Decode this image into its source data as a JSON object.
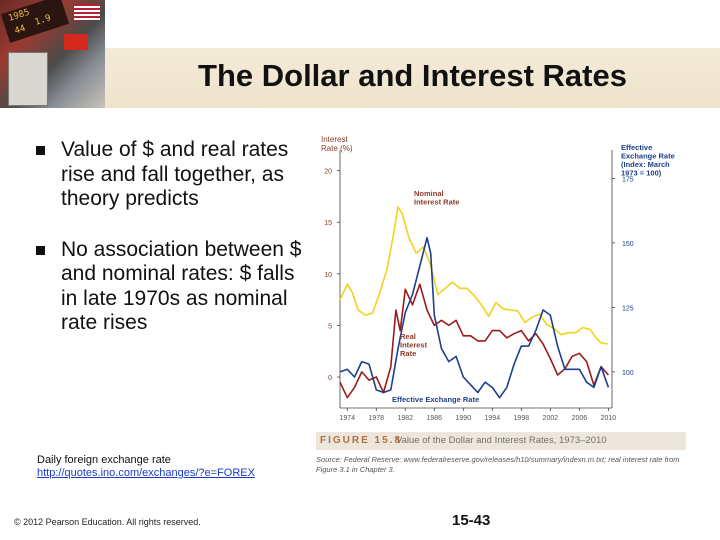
{
  "title": "The Dollar and Interest Rates",
  "bullets": [
    "Value of $ and real rates rise and fall together, as theory predicts",
    "No association between $ and nominal rates: $ falls in late 1970s as nominal rate rises"
  ],
  "note": {
    "text": "Daily foreign exchange rate",
    "link": "http://quotes.ino.com/exchanges/?e=FOREX"
  },
  "footer": {
    "copyright": "© 2012 Pearson Education. All rights reserved.",
    "page": "15-43"
  },
  "figure": {
    "label": "FIGURE 15.8",
    "caption": "Value of the Dollar and Interest Rates, 1973–2010",
    "source": "Source: Federal Reserve: www.federalreserve.gov/releases/h10/summary/indexn.m.txt; real interest rate from Figure 3.1 in Chapter 3."
  },
  "header_photo_text": {
    "a": "1985",
    "b": "1.9",
    "c": "44"
  },
  "colors": {
    "nominal": "#f2d21a",
    "real": "#9b1b1b",
    "exchange": "#1f3f8c",
    "axis": "#444444",
    "accent": "#b07040"
  },
  "chart_data": {
    "type": "line",
    "title": "Value of the Dollar and Interest Rates, 1973–2010",
    "left_axis_label": "Interest Rate (%)",
    "right_axis_label": "Effective Exchange Rate (Index: March 1973 = 100)",
    "left_ticks": [
      0,
      5,
      10,
      15,
      20
    ],
    "right_ticks": [
      100,
      125,
      150,
      175
    ],
    "x_ticks": [
      "1974",
      "1978",
      "1982",
      "1986",
      "1990",
      "1994",
      "1998",
      "2002",
      "2006",
      "2010"
    ],
    "ylim_left": [
      -3,
      22
    ],
    "ylim_right": [
      86,
      186
    ],
    "xlim": [
      1973,
      2010.5
    ],
    "annotations": [
      "Nominal Interest Rate",
      "Real Interest Rate",
      "Effective Exchange Rate"
    ],
    "series": [
      {
        "name": "Nominal Interest Rate",
        "axis": "left",
        "x": [
          1973,
          1974,
          1974.7,
          1975.5,
          1976.5,
          1977.5,
          1978.5,
          1979.5,
          1980.3,
          1981,
          1981.6,
          1982.5,
          1983.5,
          1984.5,
          1985.5,
          1986.5,
          1987.5,
          1988.5,
          1989.5,
          1990.5,
          1991.5,
          1992.5,
          1993.5,
          1994.5,
          1995.5,
          1996.5,
          1997.5,
          1998.5,
          1999.5,
          2000.5,
          2001.5,
          2002.5,
          2003.5,
          2004.5,
          2005.5,
          2006.5,
          2007.5,
          2008.3,
          2009,
          2010
        ],
        "y": [
          7.5,
          9.0,
          8.2,
          6.5,
          6.0,
          6.2,
          8.2,
          10.5,
          13.5,
          16.5,
          15.8,
          13.5,
          12.0,
          12.6,
          10.8,
          8.0,
          8.6,
          9.2,
          8.6,
          8.6,
          7.9,
          7.0,
          5.9,
          7.2,
          6.6,
          6.5,
          6.4,
          5.3,
          5.8,
          6.1,
          5.1,
          4.7,
          4.1,
          4.3,
          4.3,
          4.8,
          4.6,
          3.8,
          3.3,
          3.2
        ]
      },
      {
        "name": "Real Interest Rate",
        "axis": "left",
        "x": [
          1973,
          1974,
          1975,
          1976,
          1977,
          1978,
          1979,
          1980,
          1980.7,
          1981.3,
          1982,
          1983,
          1984,
          1985,
          1986,
          1987,
          1988,
          1989,
          1990,
          1991,
          1992,
          1993,
          1994,
          1995,
          1996,
          1997,
          1998,
          1999,
          2000,
          2001,
          2002,
          2003,
          2004,
          2005,
          2006,
          2007,
          2008,
          2009,
          2010
        ],
        "y": [
          -0.5,
          -2.0,
          -1.0,
          0.5,
          -0.3,
          0.0,
          -1.5,
          1.0,
          6.5,
          4.5,
          8.5,
          7.0,
          9.0,
          6.5,
          5.0,
          5.5,
          5.0,
          5.5,
          4.0,
          4.0,
          3.5,
          3.5,
          4.5,
          4.5,
          3.8,
          4.2,
          4.5,
          3.5,
          4.2,
          3.2,
          1.8,
          0.2,
          0.8,
          2.0,
          2.3,
          1.5,
          -0.8,
          1.0,
          0.2
        ]
      },
      {
        "name": "Effective Exchange Rate",
        "axis": "right",
        "x": [
          1973,
          1974,
          1975,
          1976,
          1977,
          1978,
          1979,
          1980,
          1981,
          1982,
          1983,
          1984,
          1985,
          1985.5,
          1986,
          1987,
          1988,
          1989,
          1990,
          1991,
          1992,
          1993,
          1994,
          1995,
          1996,
          1997,
          1998,
          1999,
          2000,
          2001,
          2002,
          2003,
          2004,
          2005,
          2006,
          2007,
          2008,
          2009,
          2010
        ],
        "y": [
          100,
          101,
          98,
          104,
          103,
          93,
          92,
          93,
          109,
          123,
          130,
          141,
          152,
          146,
          122,
          109,
          104,
          106,
          98,
          95,
          92,
          96,
          94,
          90,
          94,
          103,
          110,
          110,
          116,
          124,
          122,
          110,
          101,
          101,
          101,
          96,
          94,
          102,
          94
        ]
      }
    ]
  }
}
